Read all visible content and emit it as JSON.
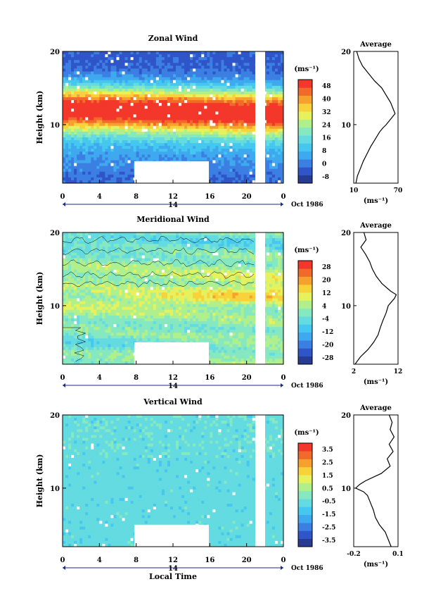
{
  "xlabel": "Local Time",
  "date_label": "Oct 1986",
  "day_label": "14",
  "x_ticks": [
    "0",
    "4",
    "8",
    "12",
    "16",
    "20",
    "0"
  ],
  "colorbar_unit": "(ms⁻¹)",
  "colors": {
    "ramp": [
      "#263b91",
      "#2f55c8",
      "#3c7fe3",
      "#3ea9ee",
      "#45c7ef",
      "#63dbe0",
      "#86e8c0",
      "#b0f08c",
      "#e6f15e",
      "#f8d23a",
      "#f6a12d",
      "#f06b2a",
      "#f4372b"
    ],
    "blank": "#ffffff",
    "line": "#000000"
  },
  "chart_data": [
    {
      "type": "heatmap",
      "title": "Zonal Wind",
      "ylabel": "Height (km)",
      "y_ticks": [
        "20",
        "10"
      ],
      "ylim": [
        2,
        20
      ],
      "xlim": [
        0,
        24
      ],
      "colorbar_ticks": [
        "48",
        "40",
        "32",
        "24",
        "16",
        "8",
        "0",
        "-8"
      ],
      "colorbar_range": [
        -12,
        52
      ],
      "profile": {
        "title": "Average",
        "xlabel": "(ms⁻¹)",
        "x_ticks": [
          "10",
          "70"
        ],
        "y_ticks": [
          "20",
          "10"
        ],
        "xlim": [
          10,
          70
        ],
        "heights": [
          2,
          3,
          4,
          5,
          6,
          7,
          8,
          9,
          9.5,
          10,
          10.5,
          11,
          11.5,
          12,
          13,
          14,
          15,
          16,
          17,
          18,
          19,
          20
        ],
        "values": [
          13,
          15,
          19,
          23,
          28,
          33,
          39,
          45,
          49,
          54,
          58,
          62,
          66,
          64,
          60,
          54,
          48,
          38,
          30,
          22,
          17,
          14
        ]
      }
    },
    {
      "type": "heatmap",
      "title": "Meridional Wind",
      "ylabel": "Height (km)",
      "y_ticks": [
        "20",
        "10"
      ],
      "ylim": [
        2,
        20
      ],
      "xlim": [
        0,
        24
      ],
      "colorbar_ticks": [
        "28",
        "20",
        "12",
        "4",
        "-4",
        "-12",
        "-20",
        "-28"
      ],
      "colorbar_range": [
        -32,
        32
      ],
      "profile": {
        "title": "Average",
        "xlabel": "(ms⁻¹)",
        "x_ticks": [
          "2",
          "12"
        ],
        "y_ticks": [
          "20",
          "10"
        ],
        "xlim": [
          2,
          12
        ],
        "heights": [
          2,
          3,
          4,
          5,
          6,
          7,
          8,
          9,
          10,
          10.5,
          11,
          11.5,
          12,
          13,
          14,
          15,
          16,
          17,
          18,
          19,
          20
        ],
        "values": [
          2.3,
          3.5,
          5.2,
          6.5,
          7.5,
          8,
          8.6,
          9.3,
          9.8,
          10.5,
          11.2,
          11.6,
          10.3,
          8.4,
          7.1,
          6.2,
          5.6,
          4.7,
          3.6,
          4.8,
          4.3
        ]
      }
    },
    {
      "type": "heatmap",
      "title": "Vertical Wind",
      "ylabel": "Height (km)",
      "y_ticks": [
        "20",
        "10"
      ],
      "ylim": [
        2,
        20
      ],
      "xlim": [
        0,
        24
      ],
      "colorbar_ticks": [
        "3.5",
        "2.5",
        "1.5",
        "0.5",
        "-0.5",
        "-1.5",
        "-2.5",
        "-3.5"
      ],
      "colorbar_range": [
        -4,
        4
      ],
      "profile": {
        "title": "Average",
        "xlabel": "(ms⁻¹)",
        "x_ticks": [
          "-0.2",
          "0.1"
        ],
        "y_ticks": [
          "20",
          "10"
        ],
        "xlim": [
          -0.3,
          0.15
        ],
        "heights": [
          2,
          3,
          4,
          5,
          6,
          7,
          8,
          9,
          9.5,
          10,
          10.5,
          11,
          12,
          13,
          14,
          15,
          16,
          17,
          18,
          19,
          20
        ],
        "values": [
          0.08,
          0.05,
          0.02,
          -0.04,
          -0.08,
          -0.1,
          -0.13,
          -0.16,
          -0.2,
          -0.28,
          -0.24,
          -0.18,
          -0.02,
          0.07,
          0.04,
          0.1,
          0.06,
          0.11,
          0.07,
          0.09,
          0.06
        ]
      }
    }
  ]
}
